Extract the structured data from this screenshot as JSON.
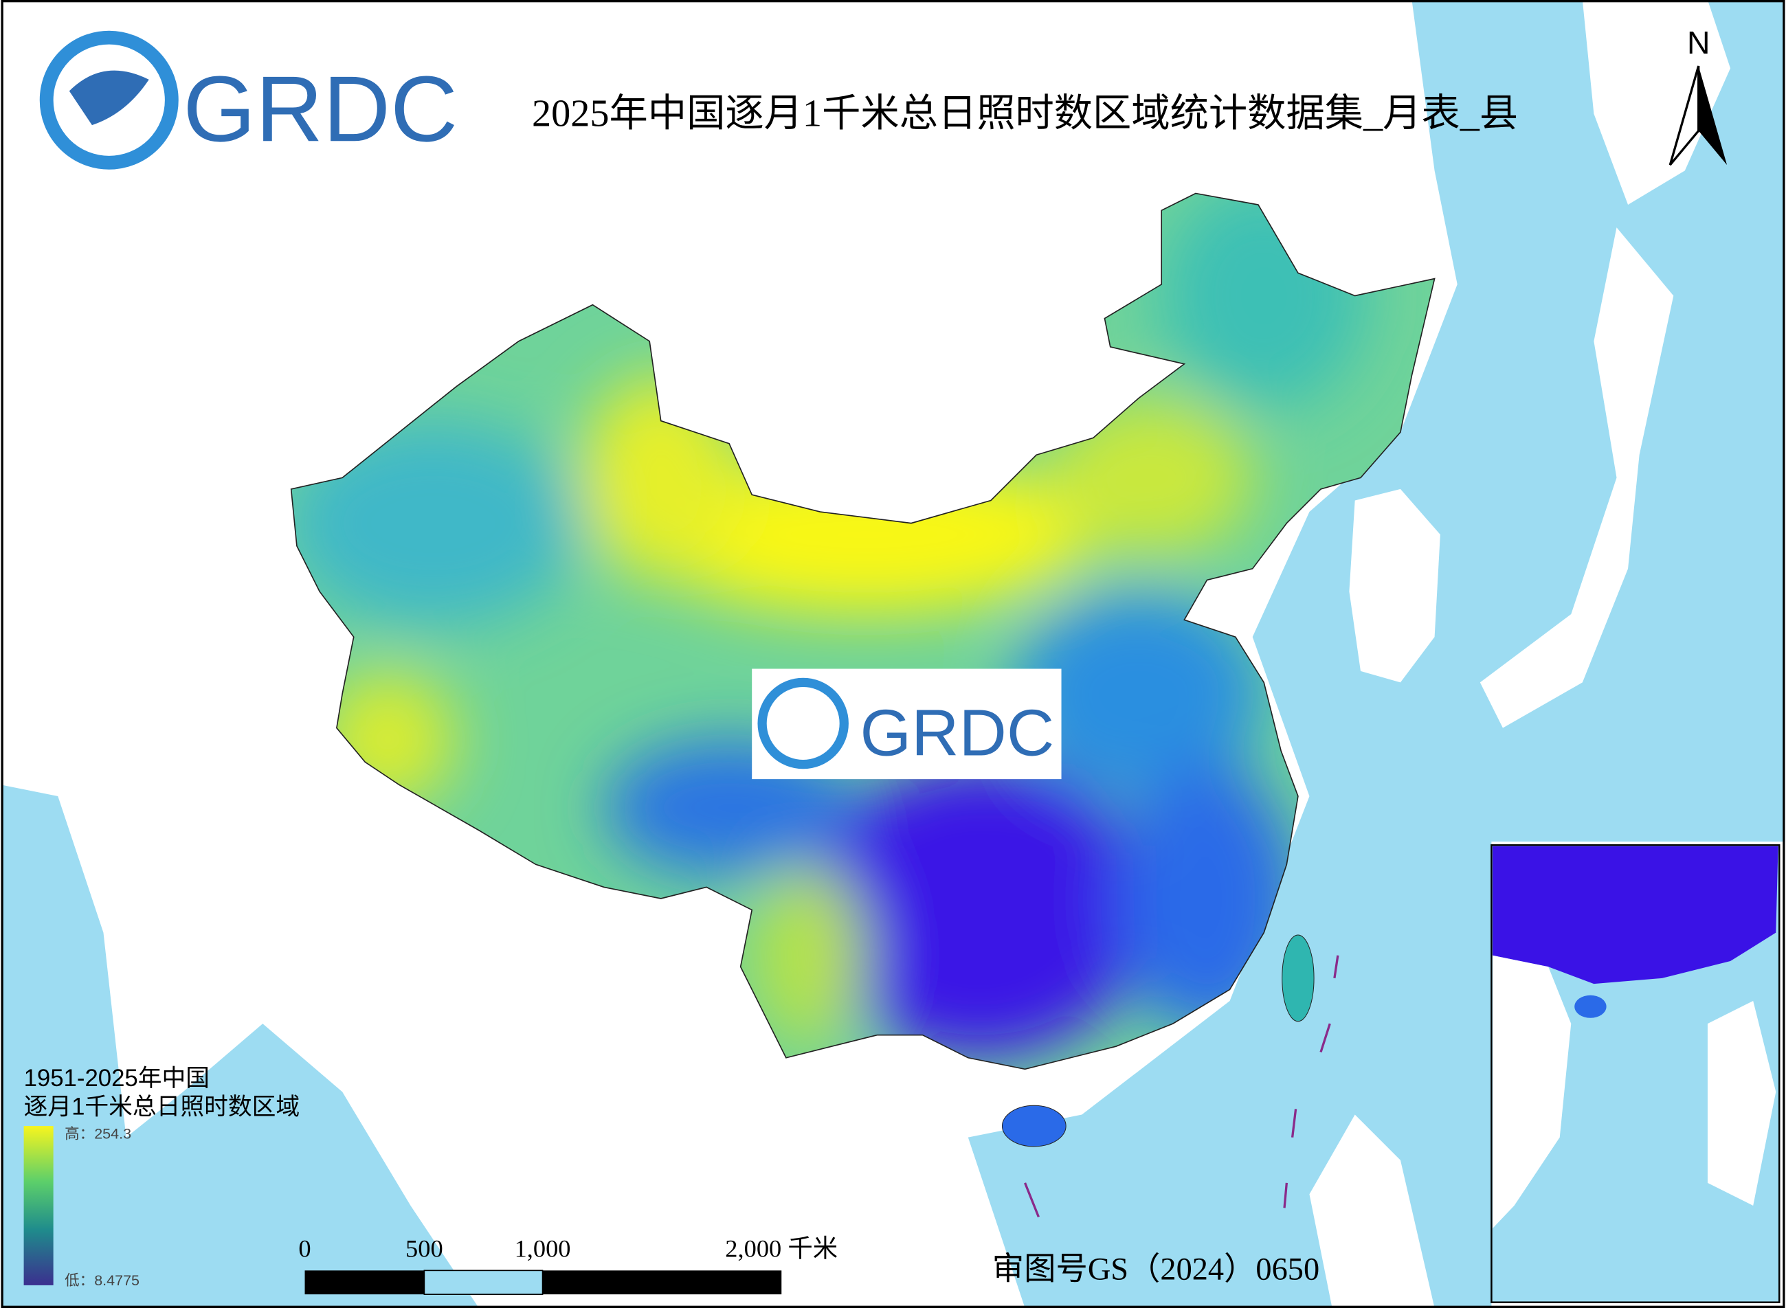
{
  "header": {
    "title": "2025年中国逐月1千米总日照时数区域统计数据集_月表_县",
    "logo": "GRDC"
  },
  "watermark": "GRDC",
  "north": "N",
  "legend": {
    "title_lines": [
      "1951-2025年中国",
      "逐月1千米总日照时数区域"
    ],
    "high": "高：254.3",
    "low": "低：8.4775"
  },
  "scale_bar": {
    "labels": [
      "0",
      "500",
      "1,000",
      "2,000 千米"
    ]
  },
  "approval": "审图号GS（2024）0650"
}
